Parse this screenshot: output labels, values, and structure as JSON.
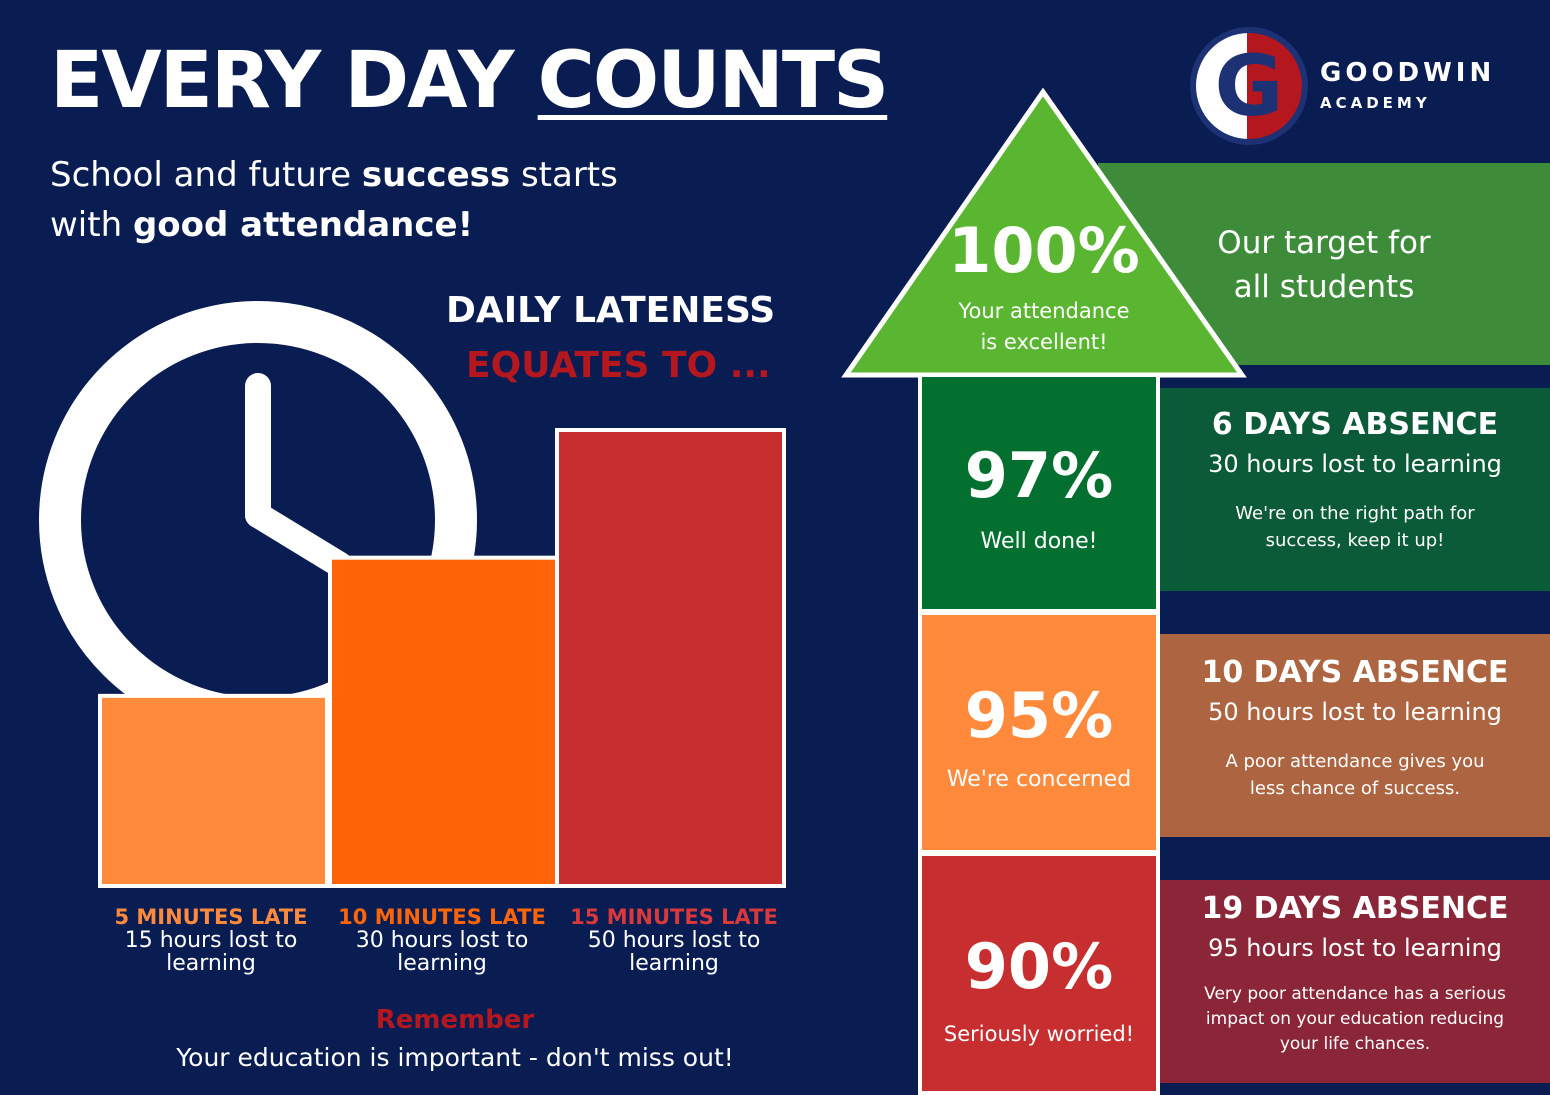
{
  "header": {
    "title_part1": "EVERY DAY",
    "title_part2": "COUNTS",
    "subtitle_a": "School and future",
    "subtitle_b": "success",
    "subtitle_c": "starts",
    "subtitle_d": "with",
    "subtitle_e": "good attendance!"
  },
  "logo": {
    "letter": "G",
    "name": "GOODWIN",
    "sub": "ACADEMY"
  },
  "lateness": {
    "heading_line1": "DAILY LATENESS",
    "heading_line2": "EQUATES TO ...",
    "bars": [
      {
        "title": "5 MINUTES LATE",
        "line1": "15 hours lost to",
        "line2": "learning",
        "hours": 15,
        "color": "#ff8a3c",
        "title_color": "#ff8a3c"
      },
      {
        "title": "10 MINUTES LATE",
        "line1": "30 hours lost to",
        "line2": "learning",
        "hours": 30,
        "color": "#ff6508",
        "title_color": "#ff6508"
      },
      {
        "title": "15 MINUTES LATE",
        "line1": "50 hours lost to",
        "line2": "learning",
        "hours": 50,
        "color": "#c62e30",
        "title_color": "#d9393b"
      }
    ],
    "remember": "Remember",
    "message": "Your education is important - don't miss out!"
  },
  "tiers": {
    "top": {
      "percent": "100%",
      "line1": "Your attendance",
      "line2": "is excellent!",
      "color": "#5ab630",
      "band_color": "#3e8c3a",
      "band_line1": "Our target for",
      "band_line2": "all students"
    },
    "rows": [
      {
        "percent": "97%",
        "label": "Well done!",
        "color": "#037030",
        "band_color": "#0b5a38",
        "title": "6 DAYS ABSENCE",
        "hours": "30 hours lost to learning",
        "note1": "We're on the right path for",
        "note2": "success, keep it up!",
        "note3": ""
      },
      {
        "percent": "95%",
        "label": "We're concerned",
        "color": "#ff8a3c",
        "band_color": "#ad6441",
        "title": "10 DAYS ABSENCE",
        "hours": "50 hours lost to learning",
        "note1": "A poor attendance gives you",
        "note2": "less chance of success.",
        "note3": ""
      },
      {
        "percent": "90%",
        "label": "Seriously worried!",
        "color": "#c62e30",
        "band_color": "#8a2637",
        "title": "19 DAYS ABSENCE",
        "hours": "95 hours lost to learning",
        "note1": "Very poor attendance has a serious",
        "note2": "impact on your education reducing",
        "note3": "your life chances."
      }
    ]
  }
}
